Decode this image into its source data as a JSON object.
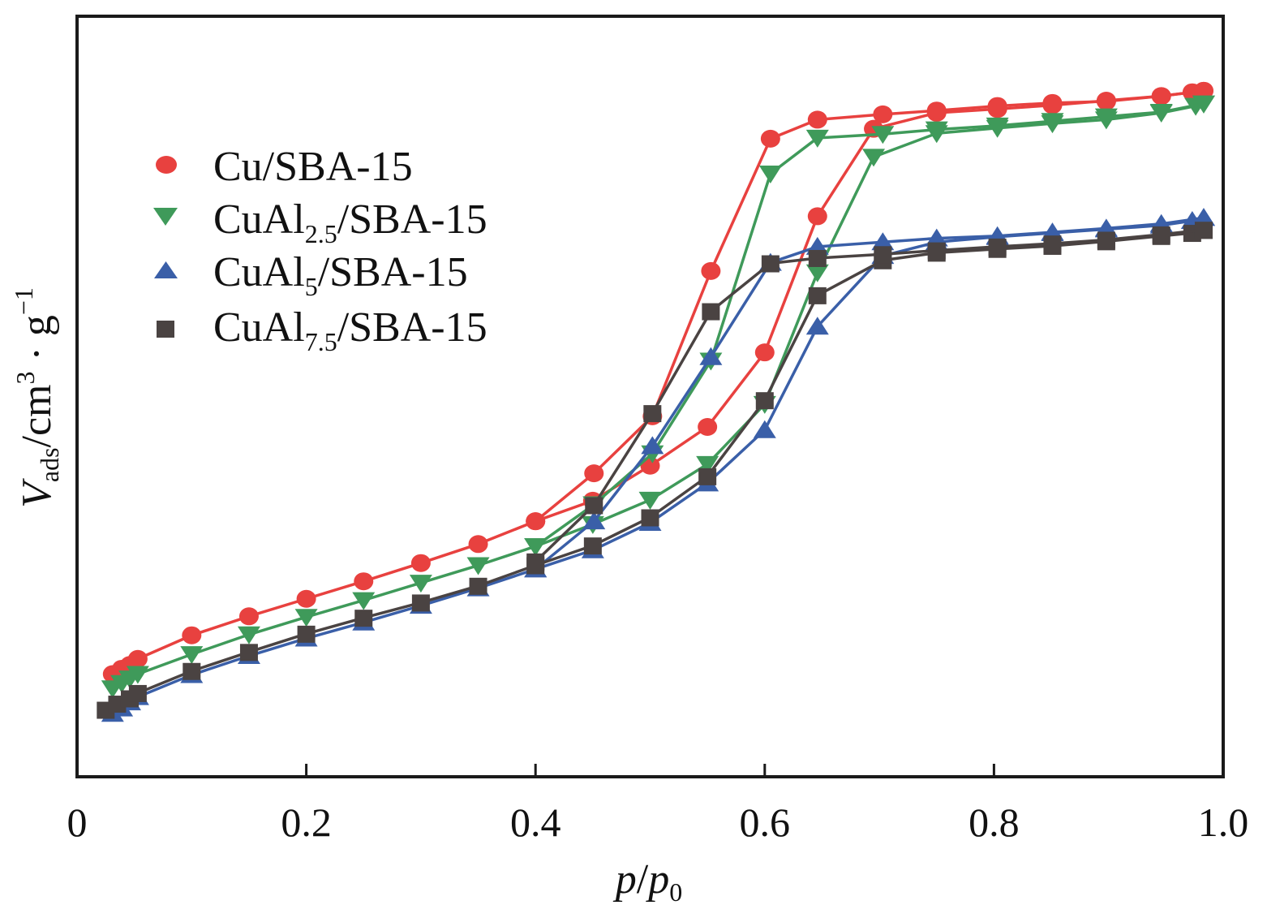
{
  "chart_data": {
    "type": "line",
    "title": "",
    "xlabel": "p/p0",
    "xlabel_parts": {
      "italic1": "p",
      "slash": "/",
      "italic2": "p",
      "sub": "0"
    },
    "ylabel": "V_ads/cm3 · g-1",
    "ylabel_parts": {
      "v": "V",
      "v_sub": "ads",
      "unit": "/cm",
      "cm_sup": "3",
      "dot": " · g",
      "g_sup": "−1"
    },
    "xlim": [
      0,
      1.0
    ],
    "ylim": [
      0,
      100
    ],
    "y_units": "arbitrary (no y tick labels shown)",
    "x_ticks": [
      0,
      0.2,
      0.4,
      0.6,
      0.8,
      1.0
    ],
    "x_tick_labels": [
      "0",
      "0.2",
      "0.4",
      "0.6",
      "0.8",
      "1.0"
    ],
    "grid": false,
    "legend_position": "top-left",
    "series": [
      {
        "name": "Cu/SBA-15",
        "label_main": "Cu/SBA-15",
        "label_sub": "",
        "label_rest": "",
        "marker": "circle",
        "color": "#e8413f",
        "adsorption": {
          "x": [
            0.031,
            0.039,
            0.046,
            0.053,
            0.1,
            0.15,
            0.2,
            0.25,
            0.3,
            0.35,
            0.4,
            0.45,
            0.5,
            0.55,
            0.6,
            0.646,
            0.695,
            0.75,
            0.803,
            0.851,
            0.898,
            0.946,
            0.973,
            0.983
          ],
          "y": [
            13.5,
            14.2,
            14.7,
            15.5,
            18.6,
            21.1,
            23.4,
            25.7,
            28.1,
            30.6,
            33.6,
            36.3,
            40.9,
            46.0,
            55.8,
            73.7,
            85.2,
            87.3,
            87.8,
            88.3,
            88.9,
            89.5,
            90.0,
            90.2
          ]
        },
        "desorption": {
          "x": [
            0.983,
            0.946,
            0.898,
            0.851,
            0.803,
            0.75,
            0.703,
            0.646,
            0.605,
            0.553,
            0.502,
            0.451,
            0.4
          ],
          "y": [
            90.2,
            89.5,
            88.8,
            88.6,
            88.2,
            87.6,
            87.1,
            86.4,
            83.9,
            66.5,
            47.4,
            39.9,
            33.6
          ]
        }
      },
      {
        "name": "CuAl2.5/SBA-15",
        "label_main": "CuAl",
        "label_sub": "2.5",
        "label_rest": "/SBA-15",
        "marker": "triangle-down",
        "color": "#3f9a5a",
        "adsorption": {
          "x": [
            0.031,
            0.039,
            0.046,
            0.053,
            0.1,
            0.15,
            0.2,
            0.25,
            0.3,
            0.35,
            0.4,
            0.45,
            0.5,
            0.55,
            0.6,
            0.646,
            0.695,
            0.75,
            0.803,
            0.851,
            0.898,
            0.946,
            0.976,
            0.983
          ],
          "y": [
            11.6,
            12.3,
            12.9,
            13.5,
            16.1,
            18.7,
            21.0,
            23.2,
            25.5,
            27.8,
            30.3,
            33.2,
            36.4,
            41.1,
            49.0,
            66.3,
            81.5,
            84.6,
            85.3,
            85.9,
            86.4,
            87.3,
            88.2,
            88.5
          ]
        },
        "desorption": {
          "x": [
            0.983,
            0.946,
            0.898,
            0.851,
            0.803,
            0.75,
            0.703,
            0.646,
            0.605,
            0.553,
            0.502,
            0.451,
            0.4
          ],
          "y": [
            88.5,
            87.4,
            86.8,
            86.2,
            85.6,
            85.1,
            84.5,
            84.0,
            79.3,
            54.7,
            42.5,
            35.8,
            30.3
          ]
        }
      },
      {
        "name": "CuAl5/SBA-15",
        "label_main": "CuAl",
        "label_sub": "5",
        "label_rest": "/SBA-15",
        "marker": "triangle-up",
        "color": "#3a5fa8",
        "adsorption": {
          "x": [
            0.031,
            0.039,
            0.046,
            0.053,
            0.1,
            0.15,
            0.2,
            0.25,
            0.3,
            0.35,
            0.4,
            0.45,
            0.5,
            0.55,
            0.6,
            0.646,
            0.703,
            0.75,
            0.803,
            0.851,
            0.898,
            0.946,
            0.973,
            0.983
          ],
          "y": [
            8.3,
            9.0,
            9.8,
            10.5,
            13.4,
            15.9,
            18.2,
            20.3,
            22.5,
            24.8,
            27.3,
            29.8,
            33.4,
            38.6,
            45.6,
            59.2,
            68.5,
            70.3,
            71.0,
            71.5,
            72.0,
            72.5,
            73.1,
            73.5
          ]
        },
        "desorption": {
          "x": [
            0.983,
            0.946,
            0.898,
            0.851,
            0.803,
            0.75,
            0.703,
            0.646,
            0.605,
            0.553,
            0.502,
            0.451,
            0.4
          ],
          "y": [
            73.5,
            72.7,
            72.1,
            71.6,
            71.1,
            70.8,
            70.3,
            69.7,
            67.6,
            55.2,
            43.5,
            33.6,
            27.3
          ]
        }
      },
      {
        "name": "CuAl7.5/SBA-15",
        "label_main": "CuAl",
        "label_sub": "7.5",
        "label_rest": "/SBA-15",
        "marker": "square",
        "color": "#4a4342",
        "adsorption": {
          "x": [
            0.025,
            0.035,
            0.046,
            0.053,
            0.1,
            0.15,
            0.2,
            0.25,
            0.3,
            0.35,
            0.4,
            0.45,
            0.5,
            0.55,
            0.6,
            0.646,
            0.703,
            0.75,
            0.803,
            0.851,
            0.898,
            0.946,
            0.973,
            0.983
          ],
          "y": [
            8.8,
            9.6,
            10.3,
            11.0,
            13.9,
            16.4,
            18.8,
            20.9,
            22.9,
            25.1,
            27.8,
            30.4,
            34.1,
            39.5,
            49.5,
            63.3,
            67.9,
            68.9,
            69.4,
            69.8,
            70.4,
            71.1,
            71.5,
            71.9
          ]
        },
        "desorption": {
          "x": [
            0.983,
            0.946,
            0.898,
            0.851,
            0.803,
            0.75,
            0.703,
            0.646,
            0.605,
            0.553,
            0.502,
            0.451,
            0.4
          ],
          "y": [
            71.9,
            71.3,
            70.6,
            70.1,
            69.7,
            69.2,
            68.7,
            68.2,
            67.5,
            61.2,
            47.8,
            35.7,
            28.3
          ]
        }
      }
    ]
  }
}
